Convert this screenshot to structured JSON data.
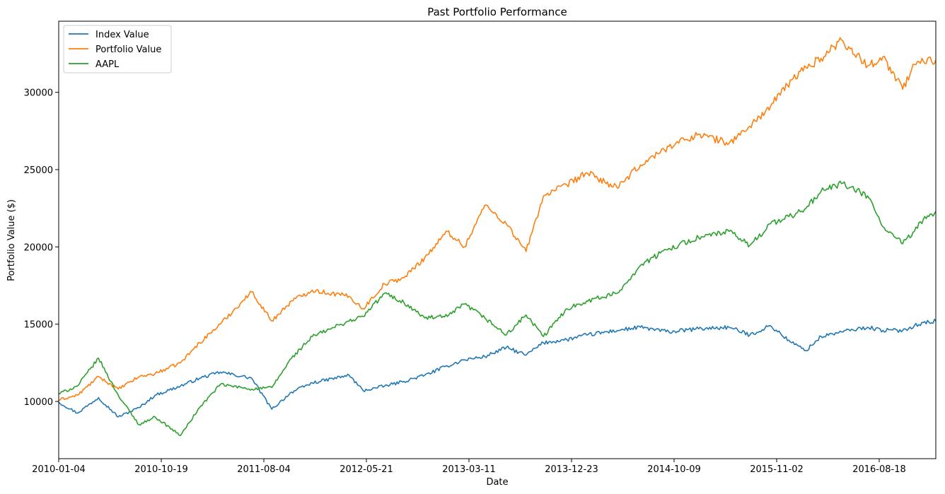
{
  "chart_data": {
    "type": "line",
    "title": "Past Portfolio Performance",
    "xlabel": "Date",
    "ylabel": "Portfolio Value ($)",
    "x_tick_labels": [
      "2010-01-04",
      "2010-10-19",
      "2011-08-04",
      "2012-05-21",
      "2013-03-11",
      "2013-12-23",
      "2014-10-09",
      "2015-11-02",
      "2016-08-18"
    ],
    "y_ticks": [
      10000,
      15000,
      20000,
      25000,
      30000
    ],
    "ylim": [
      6300,
      34600
    ],
    "xlim": [
      "2010-01-04",
      "2017-03-10"
    ],
    "grid": false,
    "legend_placement": "upper-left",
    "x": [
      "2010-01-04",
      "2010-03-01",
      "2010-05-03",
      "2010-07-01",
      "2010-09-01",
      "2010-10-19",
      "2011-01-03",
      "2011-03-01",
      "2011-05-02",
      "2011-08-04",
      "2011-10-03",
      "2011-12-01",
      "2012-02-01",
      "2012-05-21",
      "2012-07-02",
      "2012-09-04",
      "2012-11-01",
      "2013-01-02",
      "2013-03-11",
      "2013-05-01",
      "2013-07-01",
      "2013-09-03",
      "2013-11-01",
      "2013-12-23",
      "2014-03-03",
      "2014-05-01",
      "2014-08-01",
      "2014-10-09",
      "2015-01-02",
      "2015-04-01",
      "2015-07-01",
      "2015-09-01",
      "2015-11-02",
      "2016-01-04",
      "2016-02-16",
      "2016-04-01",
      "2016-06-01",
      "2016-08-18",
      "2016-10-03",
      "2016-12-01",
      "2017-01-05",
      "2017-02-01",
      "2017-03-10"
    ],
    "series": [
      {
        "name": "Index Value",
        "color": "#1f77b4",
        "values": [
          9950,
          9250,
          10250,
          9000,
          9600,
          10400,
          11000,
          11500,
          11900,
          11500,
          9500,
          10600,
          11200,
          11700,
          10700,
          11000,
          11300,
          11700,
          12300,
          12700,
          12900,
          13500,
          13000,
          13800,
          14000,
          14300,
          14600,
          14800,
          14500,
          14700,
          14800,
          14300,
          14900,
          13800,
          13300,
          14200,
          14500,
          14800,
          14600,
          14600,
          14900,
          15100,
          15200
        ]
      },
      {
        "name": "Portfolio Value",
        "color": "#ff7f0e",
        "values": [
          10100,
          10400,
          11600,
          10800,
          11600,
          11800,
          12500,
          13800,
          15000,
          17100,
          15200,
          16500,
          17200,
          16800,
          16000,
          17600,
          18000,
          19300,
          21000,
          20000,
          22700,
          21500,
          19700,
          23300,
          24000,
          24800,
          23800,
          25300,
          26500,
          27300,
          26700,
          27800,
          29100,
          30800,
          31600,
          32200,
          33400,
          31700,
          32300,
          30200,
          31800,
          32000,
          32100
        ]
      },
      {
        "name": "AAPL",
        "color": "#2ca02c",
        "values": [
          10500,
          11000,
          12800,
          10400,
          8500,
          9000,
          7800,
          9600,
          11100,
          10800,
          10900,
          12800,
          14200,
          15200,
          15500,
          17000,
          16400,
          15400,
          15500,
          16300,
          15400,
          14300,
          15600,
          14200,
          16000,
          16500,
          17000,
          18800,
          19900,
          20600,
          21000,
          20100,
          21500,
          22000,
          22500,
          23600,
          24100,
          23300,
          21300,
          20200,
          21000,
          21800,
          22300
        ]
      }
    ]
  }
}
